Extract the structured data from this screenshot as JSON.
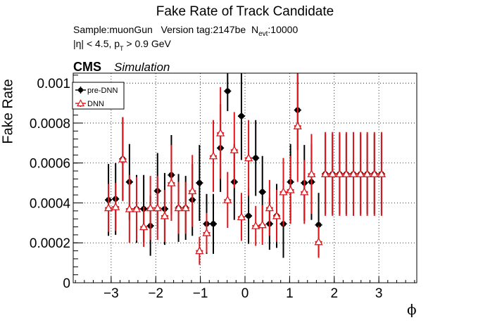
{
  "chart_data": {
    "type": "scatter",
    "title": "Fake Rate of Track Candidate",
    "info_sample_label": "Sample:muonGun",
    "info_version_label": "Version tag:2147be",
    "info_nevt_prefix": "N",
    "info_nevt_sub": "evt",
    "info_nevt_value": ":10000",
    "cut_eta": "|η| < 4.5, p",
    "cut_pt_sub": "T",
    "cut_pt_value": " > 0.9 GeV",
    "cms_label": "CMS",
    "simulation_label": "Simulation",
    "xlabel": "ϕ",
    "ylabel": "Fake Rate",
    "xlim": [
      -3.85,
      3.85
    ],
    "ylim": [
      0,
      0.00105
    ],
    "xticks": [
      -3,
      -2,
      -1,
      0,
      1,
      2,
      3
    ],
    "xtick_labels": [
      "−3",
      "−2",
      "−1",
      "0",
      "1",
      "2",
      "3"
    ],
    "yticks": [
      0,
      0.0002,
      0.0004,
      0.0006,
      0.0008,
      0.001
    ],
    "ytick_labels": [
      "0",
      "0.0002",
      "0.0004",
      "0.0006",
      "0.0008",
      "0.001"
    ],
    "grid": true,
    "legend_position": "top-left",
    "bin_half_width": 0.079,
    "series": [
      {
        "name": "pre-DNN",
        "color": "#000000",
        "marker": "filled-circle",
        "x": [
          -3.06,
          -2.9,
          -2.74,
          -2.59,
          -2.43,
          -2.27,
          -2.12,
          -1.96,
          -1.8,
          -1.65,
          -1.49,
          -1.33,
          -1.18,
          -1.02,
          -0.86,
          -0.71,
          -0.55,
          -0.39,
          -0.24,
          -0.08,
          0.08,
          0.24,
          0.39,
          0.55,
          0.71,
          0.86,
          1.02,
          1.18,
          1.33,
          1.49,
          1.65,
          1.8,
          1.96,
          2.12,
          2.27,
          2.43,
          2.59,
          2.74,
          2.9,
          3.06
        ],
        "y": [
          0.000415,
          0.00042,
          0.00062,
          0.000505,
          0.00037,
          0.00037,
          0.000285,
          0.00046,
          0.00037,
          0.00054,
          0.000375,
          0.000375,
          0.000415,
          0.0005,
          0.000295,
          0.000295,
          0.000675,
          0.00096,
          0.000505,
          0.000835,
          0.000335,
          0.000625,
          0.000455,
          0.000295,
          0.000335,
          0.000295,
          0.000505,
          0.000865,
          0.0005,
          0.000505,
          0.00029,
          0.000545,
          0.000545,
          0.000545,
          0.000545,
          0.000545,
          0.000545,
          0.000545,
          0.000545,
          0.000545
        ],
        "err": [
          0.00018,
          0.00018,
          0.00021,
          0.00019,
          0.00017,
          0.00017,
          0.00015,
          0.00019,
          0.00018,
          0.0002,
          0.00017,
          0.00016,
          0.00018,
          0.00019,
          0.00015,
          0.00015,
          0.00022,
          0.0001,
          0.00019,
          0.00022,
          0.00014,
          0.00019,
          0.00018,
          0.00013,
          0.00016,
          0.00017,
          0.00019,
          0.0002,
          0.00019,
          0.00019,
          0.00016,
          0.0002,
          0.0002,
          0.0002,
          0.0002,
          0.0002,
          0.0002,
          0.0002,
          0.0002,
          0.0002
        ]
      },
      {
        "name": "DNN",
        "color": "#e0161c",
        "marker": "open-triangle",
        "x": [
          -3.06,
          -2.9,
          -2.74,
          -2.59,
          -2.43,
          -2.27,
          -2.12,
          -1.96,
          -1.8,
          -1.65,
          -1.49,
          -1.33,
          -1.18,
          -1.02,
          -0.86,
          -0.71,
          -0.55,
          -0.39,
          -0.24,
          -0.08,
          0.08,
          0.24,
          0.39,
          0.55,
          0.71,
          0.86,
          1.02,
          1.18,
          1.33,
          1.49,
          1.65,
          1.8,
          1.96,
          2.12,
          2.27,
          2.43,
          2.59,
          2.74,
          2.9,
          3.06
        ],
        "y": [
          0.000375,
          0.00038,
          0.00062,
          0.00037,
          0.00037,
          0.00028,
          0.000375,
          0.000375,
          0.000335,
          0.0005,
          0.000375,
          0.000375,
          0.00046,
          0.00016,
          0.00025,
          0.000635,
          0.00075,
          0.000415,
          0.000665,
          0.00033,
          0.000625,
          0.000285,
          0.00029,
          0.000375,
          0.000335,
          0.000455,
          0.000465,
          0.000785,
          0.000455,
          0.000545,
          0.000205,
          0.000545,
          0.000545,
          0.000545,
          0.000545,
          0.000545,
          0.000545,
          0.000545,
          0.000545,
          0.000545
        ],
        "err": [
          0.00012,
          0.00012,
          0.00021,
          0.00017,
          0.00016,
          0.0001,
          0.00016,
          0.00016,
          0.00013,
          0.00019,
          0.00013,
          0.00013,
          0.00018,
          7e-05,
          0.0001,
          0.00018,
          0.00023,
          0.00014,
          0.00019,
          0.00012,
          0.00019,
          0.0001,
          0.0001,
          0.00014,
          0.00013,
          0.00017,
          0.00017,
          0.00028,
          0.00016,
          0.0002,
          8e-05,
          0.00021,
          0.00021,
          0.00021,
          0.00021,
          0.00021,
          0.00021,
          0.00021,
          0.00021,
          0.00021
        ]
      }
    ]
  }
}
